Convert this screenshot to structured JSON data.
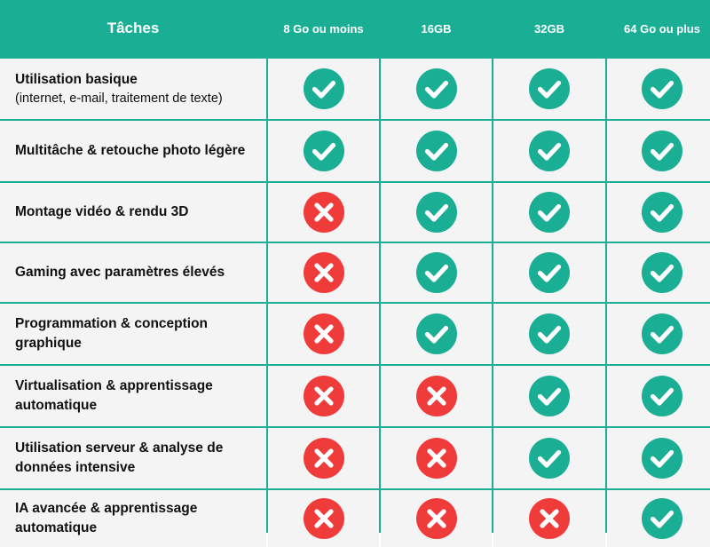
{
  "colors": {
    "accent": "#1aae95",
    "yes": "#1aae95",
    "no": "#ef3b3a",
    "cell": "#f4f4f4"
  },
  "header": {
    "task": "Tâches",
    "cols": [
      "8 Go ou moins",
      "16GB",
      "32GB",
      "64 Go ou plus"
    ]
  },
  "rows": [
    {
      "task": "Utilisation basique",
      "sub": "(internet, e-mail, traitement de texte)",
      "values": [
        "yes",
        "yes",
        "yes",
        "yes"
      ]
    },
    {
      "task": "Multitâche & retouche photo légère",
      "sub": "",
      "values": [
        "yes",
        "yes",
        "yes",
        "yes"
      ]
    },
    {
      "task": "Montage vidéo & rendu 3D",
      "sub": "",
      "values": [
        "no",
        "yes",
        "yes",
        "yes"
      ]
    },
    {
      "task": "Gaming avec paramètres élevés",
      "sub": "",
      "values": [
        "no",
        "yes",
        "yes",
        "yes"
      ]
    },
    {
      "task": "Programmation & conception graphique",
      "sub": "",
      "values": [
        "no",
        "yes",
        "yes",
        "yes"
      ]
    },
    {
      "task": "Virtualisation & apprentissage automatique",
      "sub": "",
      "values": [
        "no",
        "no",
        "yes",
        "yes"
      ]
    },
    {
      "task": "Utilisation serveur & analyse de données intensive",
      "sub": "",
      "values": [
        "no",
        "no",
        "yes",
        "yes"
      ]
    },
    {
      "task": "IA avancée & apprentissage automatique",
      "sub": "",
      "values": [
        "no",
        "no",
        "no",
        "yes"
      ]
    }
  ],
  "icons": {
    "yes": "check-circle-icon",
    "no": "cross-circle-icon"
  }
}
